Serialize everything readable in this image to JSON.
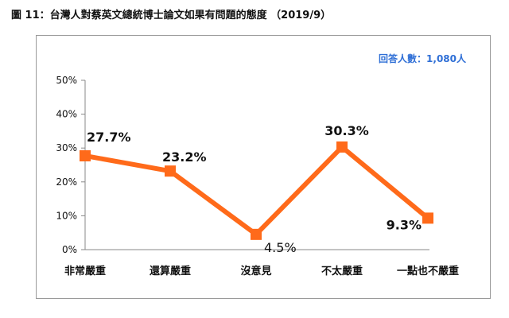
{
  "title": "圖 11：台灣人對蔡英文總統博士論文如果有問題的態度 （2019/9）",
  "note": "回答人數：1,080人",
  "colors": {
    "line": "#ff6a1a",
    "frame": "#9a9a9a",
    "note": "#2f6fd6"
  },
  "chart_data": {
    "type": "line",
    "title": "",
    "xlabel": "",
    "ylabel": "",
    "categories": [
      "非常嚴重",
      "還算嚴重",
      "沒意見",
      "不太嚴重",
      "一點也不嚴重"
    ],
    "values": [
      27.7,
      23.2,
      4.5,
      30.3,
      9.3
    ],
    "data_labels": [
      "27.7%",
      "23.2%",
      "4.5%",
      "30.3%",
      "9.3%"
    ],
    "ylim": [
      0,
      50
    ],
    "yticks": [
      "0%",
      "10%",
      "20%",
      "30%",
      "40%",
      "50%"
    ],
    "grid": false,
    "legend": "none"
  }
}
